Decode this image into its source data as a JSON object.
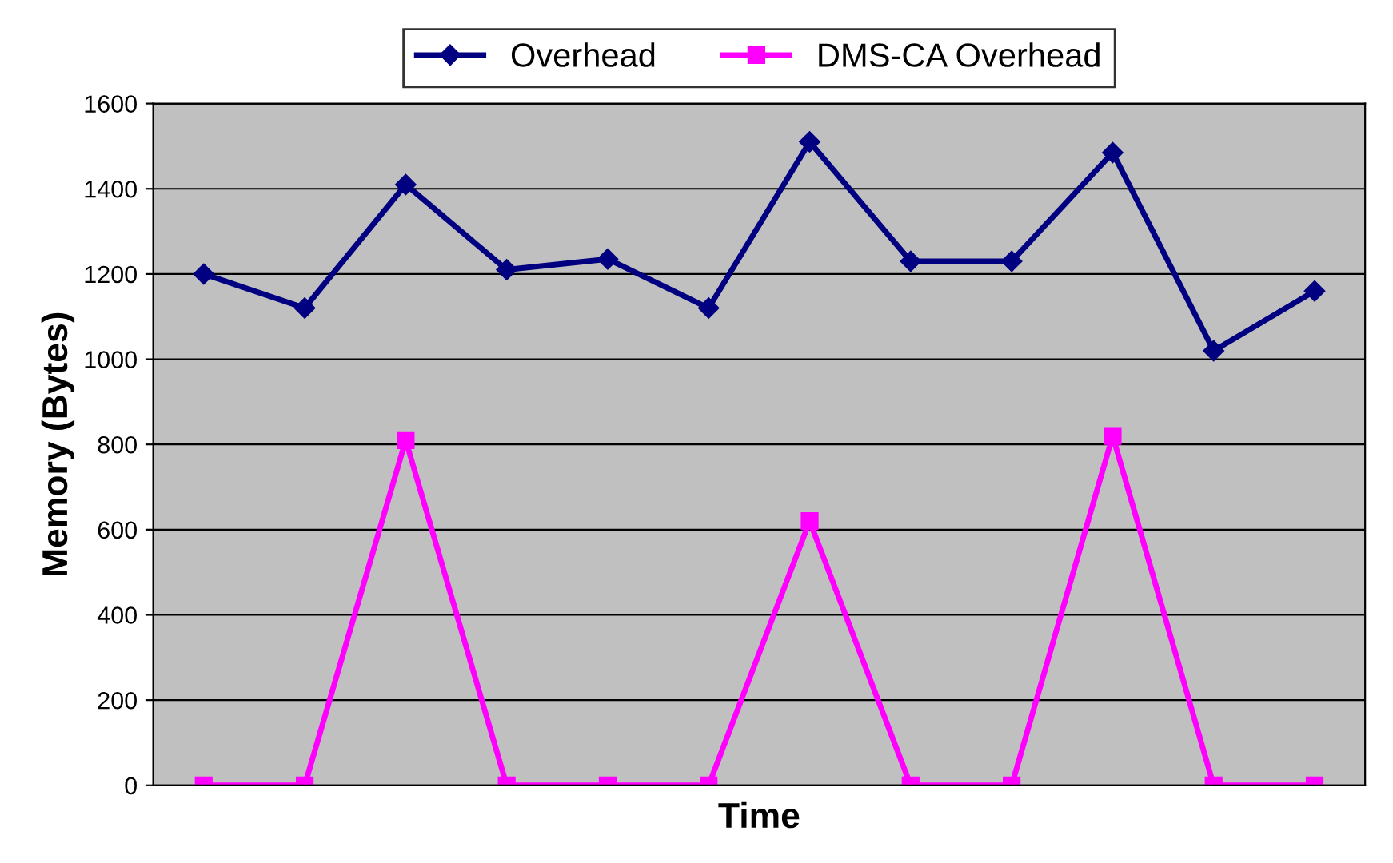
{
  "chart_data": {
    "type": "line",
    "xlabel": "Time",
    "ylabel": "Memory (Bytes)",
    "categories": [
      null,
      null,
      null,
      null,
      null,
      null,
      null,
      null,
      null,
      null,
      null,
      null
    ],
    "series": [
      {
        "name": "Overhead",
        "color": "#000080",
        "marker": "diamond",
        "values": [
          1200,
          1120,
          1410,
          1210,
          1235,
          1120,
          1510,
          1230,
          1230,
          1485,
          1020,
          1160
        ]
      },
      {
        "name": "DMS-CA Overhead",
        "color": "#ff00ff",
        "marker": "square",
        "values": [
          0,
          0,
          810,
          0,
          0,
          0,
          620,
          0,
          0,
          820,
          0,
          0
        ]
      }
    ],
    "ylim": [
      0,
      1600
    ],
    "yticks": [
      0,
      200,
      400,
      600,
      800,
      1000,
      1200,
      1400,
      1600
    ],
    "grid": "y",
    "legend": "top",
    "line_style": "solid"
  }
}
